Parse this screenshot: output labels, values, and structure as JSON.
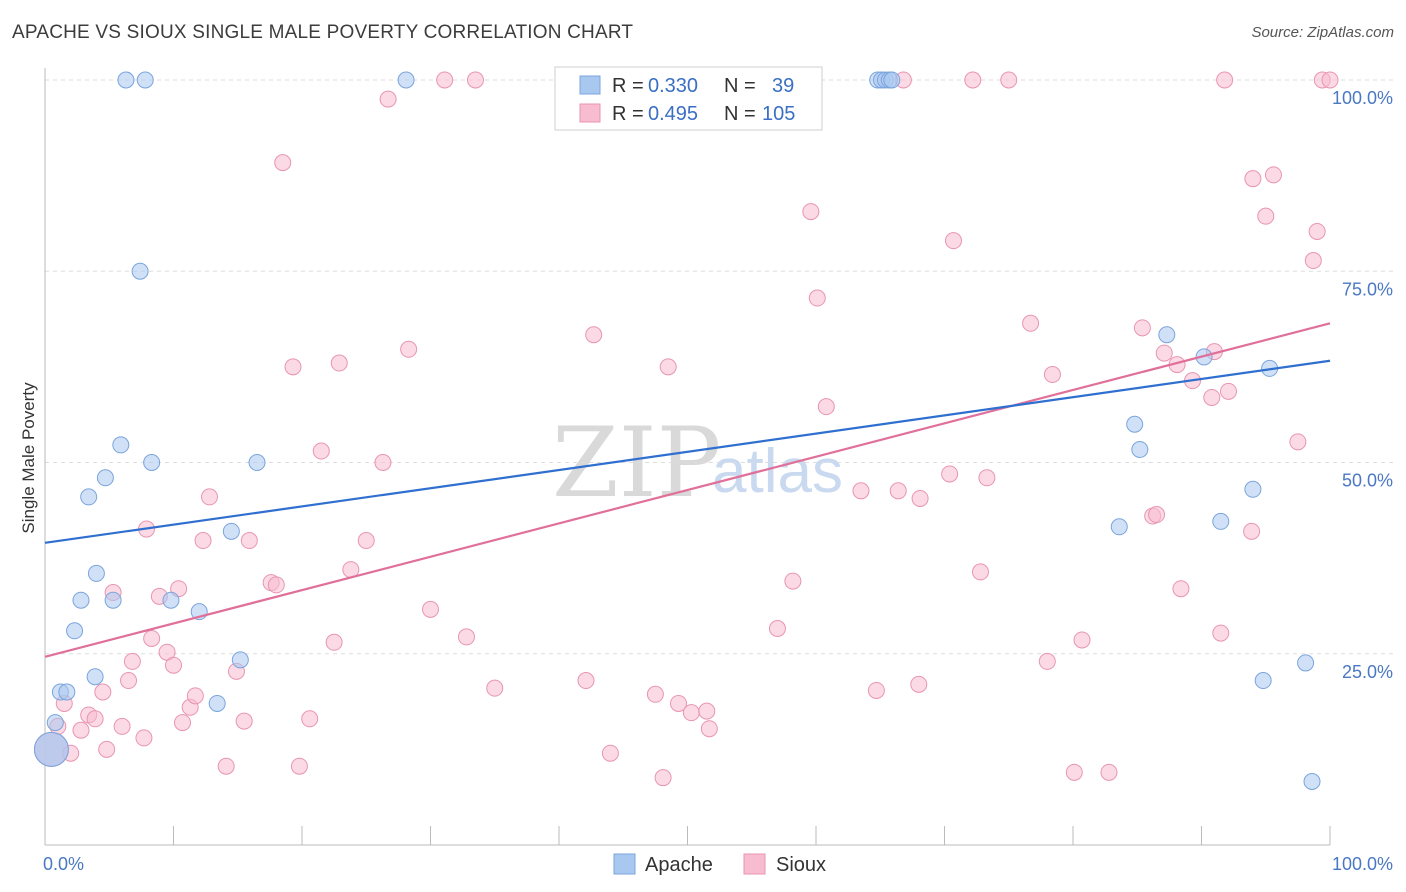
{
  "title": "APACHE VS SIOUX SINGLE MALE POVERTY CORRELATION CHART",
  "source": "Source: ZipAtlas.com",
  "watermark": {
    "zip": "ZIP",
    "atlas": "atlas"
  },
  "colors": {
    "apache_fill": "#a9c8f0",
    "apache_stroke": "#7aa4dc",
    "apache_line": "#2f6fd0",
    "sioux_fill": "#f8bcd0",
    "sioux_stroke": "#e895b2",
    "sioux_line": "#e0709a",
    "grid": "#dddddd",
    "tick_text": "#4a78c2"
  },
  "legend_top": {
    "rows": [
      {
        "r_label": "R =",
        "r_value": "0.330",
        "n_label": "N =",
        "n_value": "39"
      },
      {
        "r_label": "R =",
        "r_value": "0.495",
        "n_label": "N =",
        "n_value": "105"
      }
    ]
  },
  "chart_data": {
    "type": "scatter",
    "title": "APACHE VS SIOUX SINGLE MALE POVERTY CORRELATION CHART",
    "xlabel": "",
    "ylabel": "Single Male Poverty",
    "xlim": [
      0,
      100
    ],
    "ylim": [
      0,
      100
    ],
    "x_tick_labels": [
      "0.0%",
      "100.0%"
    ],
    "y_tick_labels": [
      "25.0%",
      "50.0%",
      "75.0%",
      "100.0%"
    ],
    "y_ticks": [
      25,
      50,
      75,
      100
    ],
    "grid": true,
    "legend": [
      "Apache",
      "Sioux"
    ],
    "legend_position": "bottom-center",
    "series": [
      {
        "name": "Apache",
        "r": 0.33,
        "n": 39,
        "trend": [
          [
            0,
            39.5
          ],
          [
            100,
            63.3
          ]
        ],
        "points": [
          [
            0.5,
            12.5
          ],
          [
            0.8,
            16
          ],
          [
            1.2,
            20
          ],
          [
            1.7,
            20
          ],
          [
            2.3,
            28
          ],
          [
            2.8,
            32
          ],
          [
            3.4,
            45.5
          ],
          [
            3.9,
            22
          ],
          [
            4.0,
            35.5
          ],
          [
            4.7,
            48
          ],
          [
            5.3,
            32
          ],
          [
            5.9,
            52.3
          ],
          [
            6.3,
            100
          ],
          [
            7.4,
            75
          ],
          [
            7.8,
            100
          ],
          [
            8.3,
            50
          ],
          [
            9.8,
            32
          ],
          [
            12.0,
            30.5
          ],
          [
            13.4,
            18.5
          ],
          [
            14.5,
            41
          ],
          [
            15.2,
            24.2
          ],
          [
            16.5,
            50
          ],
          [
            28.1,
            100
          ],
          [
            64.8,
            100
          ],
          [
            65.1,
            100
          ],
          [
            65.4,
            100
          ],
          [
            65.7,
            100
          ],
          [
            65.9,
            100
          ],
          [
            83.6,
            41.6
          ],
          [
            84.8,
            55
          ],
          [
            85.2,
            51.7
          ],
          [
            87.3,
            66.7
          ],
          [
            90.2,
            63.8
          ],
          [
            91.5,
            42.3
          ],
          [
            94.0,
            46.5
          ],
          [
            94.8,
            21.5
          ],
          [
            95.3,
            62.3
          ],
          [
            98.1,
            23.8
          ],
          [
            98.6,
            8.3
          ]
        ]
      },
      {
        "name": "Sioux",
        "r": 0.495,
        "n": 105,
        "trend": [
          [
            0,
            24.6
          ],
          [
            100,
            68.2
          ]
        ],
        "points": [
          [
            0.5,
            12.5
          ],
          [
            1.0,
            15.5
          ],
          [
            1.5,
            18.5
          ],
          [
            2.0,
            12
          ],
          [
            2.8,
            15
          ],
          [
            3.4,
            17
          ],
          [
            3.9,
            16.5
          ],
          [
            4.5,
            20
          ],
          [
            4.8,
            12.5
          ],
          [
            5.3,
            33
          ],
          [
            6.0,
            15.5
          ],
          [
            6.5,
            21.5
          ],
          [
            6.8,
            24
          ],
          [
            7.7,
            14
          ],
          [
            7.9,
            41.3
          ],
          [
            8.3,
            27
          ],
          [
            8.9,
            32.5
          ],
          [
            9.5,
            25.2
          ],
          [
            10.0,
            23.5
          ],
          [
            10.4,
            33.5
          ],
          [
            10.7,
            16
          ],
          [
            11.3,
            18
          ],
          [
            11.7,
            19.5
          ],
          [
            12.3,
            39.8
          ],
          [
            12.8,
            45.5
          ],
          [
            14.1,
            10.3
          ],
          [
            14.9,
            22.7
          ],
          [
            15.5,
            16.2
          ],
          [
            15.9,
            39.8
          ],
          [
            17.6,
            34.3
          ],
          [
            18.0,
            34
          ],
          [
            18.5,
            89.2
          ],
          [
            19.3,
            62.5
          ],
          [
            19.8,
            10.3
          ],
          [
            20.6,
            16.5
          ],
          [
            21.5,
            51.5
          ],
          [
            22.5,
            26.5
          ],
          [
            22.9,
            63
          ],
          [
            23.8,
            36
          ],
          [
            25.0,
            39.8
          ],
          [
            26.3,
            50
          ],
          [
            26.7,
            97.5
          ],
          [
            28.3,
            64.8
          ],
          [
            30.0,
            30.8
          ],
          [
            31.1,
            100
          ],
          [
            32.8,
            27.2
          ],
          [
            33.5,
            100
          ],
          [
            35.0,
            20.5
          ],
          [
            42.1,
            21.5
          ],
          [
            42.7,
            66.7
          ],
          [
            44.0,
            12
          ],
          [
            47.5,
            19.7
          ],
          [
            48.1,
            8.8
          ],
          [
            48.5,
            62.5
          ],
          [
            49.3,
            18.5
          ],
          [
            50.3,
            17.3
          ],
          [
            51.5,
            17.5
          ],
          [
            51.7,
            15.2
          ],
          [
            53.1,
            100
          ],
          [
            55.3,
            100
          ],
          [
            55.8,
            100
          ],
          [
            57.0,
            28.3
          ],
          [
            58.2,
            34.5
          ],
          [
            59.6,
            82.8
          ],
          [
            60.1,
            71.5
          ],
          [
            60.8,
            57.3
          ],
          [
            63.5,
            46.3
          ],
          [
            64.7,
            20.2
          ],
          [
            66.4,
            46.3
          ],
          [
            66.8,
            100
          ],
          [
            68.0,
            21
          ],
          [
            68.1,
            45.3
          ],
          [
            70.4,
            48.5
          ],
          [
            70.7,
            79
          ],
          [
            72.2,
            100
          ],
          [
            72.8,
            35.7
          ],
          [
            73.3,
            48
          ],
          [
            75.0,
            100
          ],
          [
            76.7,
            68.2
          ],
          [
            78.0,
            24
          ],
          [
            78.4,
            61.5
          ],
          [
            80.1,
            9.5
          ],
          [
            80.7,
            26.8
          ],
          [
            82.8,
            9.5
          ],
          [
            85.4,
            67.6
          ],
          [
            86.2,
            43
          ],
          [
            86.5,
            43.2
          ],
          [
            87.1,
            64.3
          ],
          [
            88.1,
            62.8
          ],
          [
            88.4,
            33.5
          ],
          [
            89.3,
            60.7
          ],
          [
            90.8,
            58.5
          ],
          [
            91.0,
            64.5
          ],
          [
            91.5,
            27.7
          ],
          [
            91.8,
            100
          ],
          [
            92.1,
            59.3
          ],
          [
            93.9,
            41
          ],
          [
            94.0,
            87.1
          ],
          [
            95.0,
            82.2
          ],
          [
            95.6,
            87.6
          ],
          [
            97.5,
            52.7
          ],
          [
            98.7,
            76.4
          ],
          [
            99.0,
            80.2
          ],
          [
            99.4,
            100
          ],
          [
            100.0,
            100
          ]
        ]
      }
    ]
  }
}
